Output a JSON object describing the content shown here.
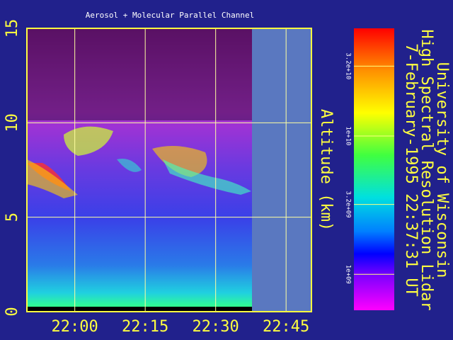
{
  "chart_data": {
    "type": "image",
    "title": "Aerosol + Molecular Parallel Channel",
    "y_label": "Altitude (km)",
    "side_lines": [
      "University of Wisconsin",
      "High Spectral Resolution Lidar",
      "7-February-1995 22:37:31 UT"
    ],
    "xlim": [
      1309.8,
      1370.4
    ],
    "xticks": [
      {
        "value": 1320,
        "label": "22:00"
      },
      {
        "value": 1335,
        "label": "22:15"
      },
      {
        "value": 1350,
        "label": "22:30"
      },
      {
        "value": 1365,
        "label": "22:45"
      }
    ],
    "ylim": [
      0,
      15
    ],
    "yticks": [
      0,
      5,
      10,
      15
    ],
    "grid": true,
    "colorbar": {
      "log": true,
      "lim": [
        550000000,
        60000000000
      ],
      "ticks": [
        {
          "value": 32000000000,
          "label": "3.2e+10"
        },
        {
          "value": 10000000000,
          "label": "1e+10"
        },
        {
          "value": 3200000000,
          "label": "3.2e+09"
        },
        {
          "value": 1000000000,
          "label": "1e+09"
        }
      ]
    }
  }
}
